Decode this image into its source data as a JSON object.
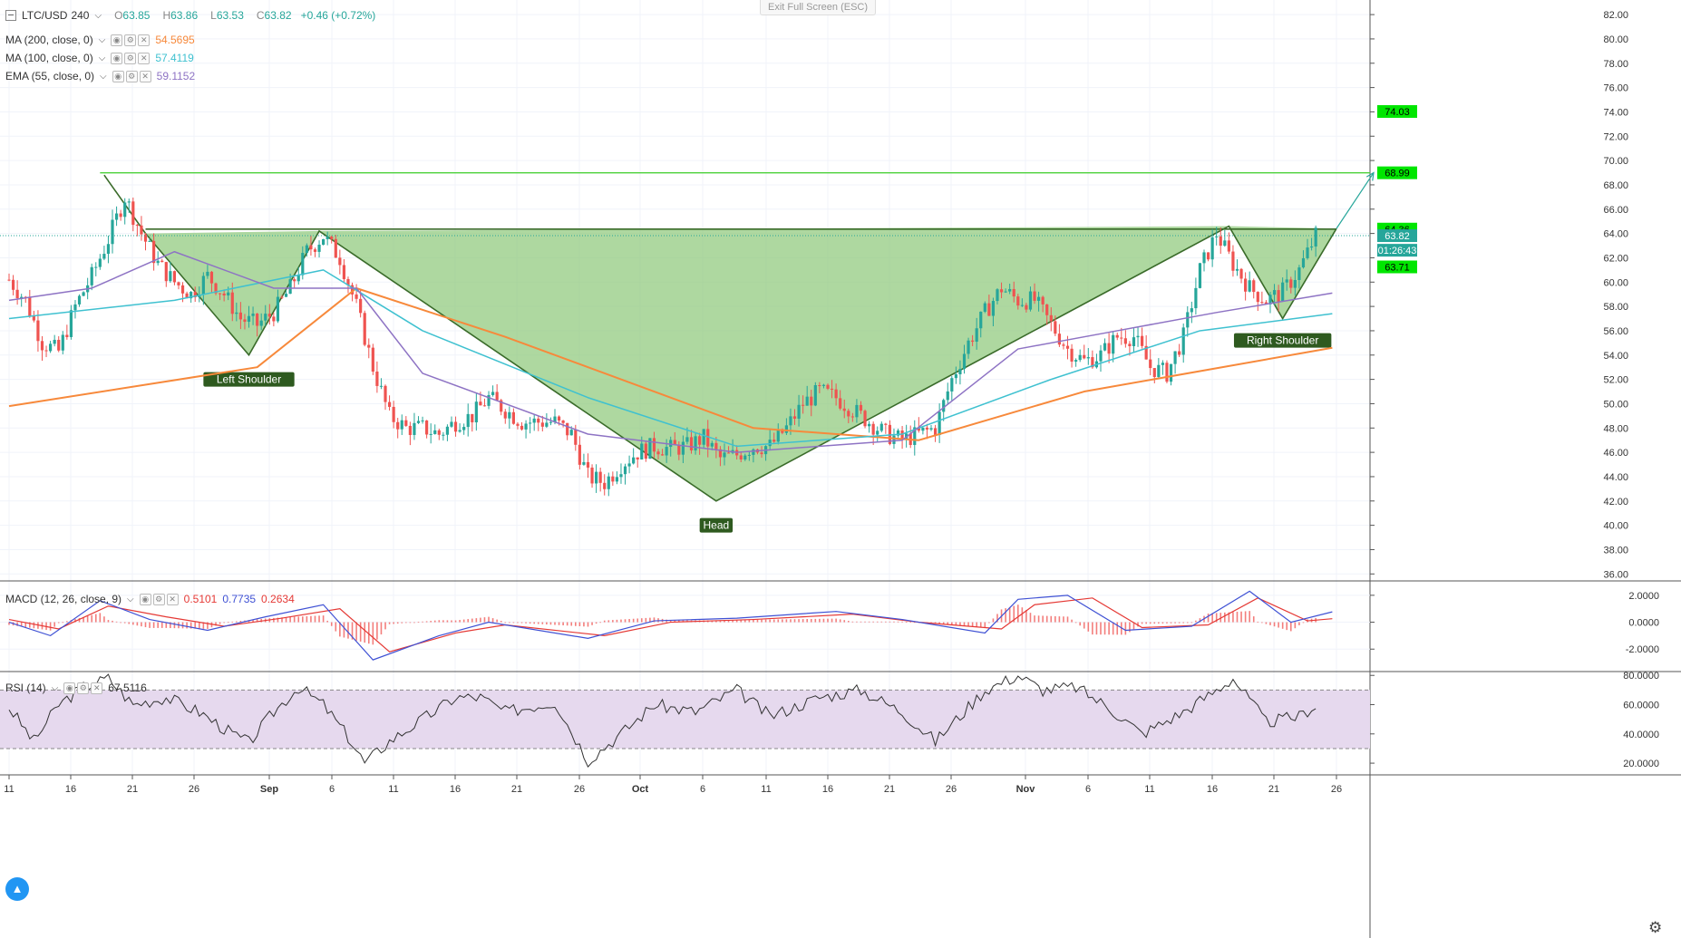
{
  "header": {
    "symbol": "LTC/USD",
    "interval": "240",
    "ohlc": [
      {
        "key": "O",
        "value": "63.85"
      },
      {
        "key": "H",
        "value": "63.86"
      },
      {
        "key": "L",
        "value": "63.53"
      },
      {
        "key": "C",
        "value": "63.82"
      }
    ],
    "change": "+0.46 (+0.72%)",
    "exit_fullscreen": "Exit Full Screen (ESC)"
  },
  "indicators": [
    {
      "name": "MA (200, close, 0)",
      "value": "54.5695",
      "color": "#f7893b"
    },
    {
      "name": "MA (100, close, 0)",
      "value": "57.4119",
      "color": "#3fc1d0"
    },
    {
      "name": "EMA (55, close, 0)",
      "value": "59.1152",
      "color": "#8e73c4"
    }
  ],
  "macd_legend": {
    "name": "MACD (12, 26, close, 9)",
    "values": [
      "0.5101",
      "0.7735",
      "0.2634"
    ],
    "colors": [
      "#e53935",
      "#3f51d4",
      "#e53935"
    ]
  },
  "rsi_legend": {
    "name": "RSI (14)",
    "value": "67.5116",
    "color": "#333333"
  },
  "icons": {
    "collapse": "collapse-icon",
    "logo": "tradingview-logo-icon",
    "settings": "gear-icon"
  },
  "colors": {
    "up": "#26a69a",
    "down": "#ef5350",
    "pattern_fill": "#8bc878",
    "pattern_stroke": "#3a6b2a",
    "target_line": "#4cd13a",
    "rsi_band": "#e6d9ee"
  },
  "chart_data": [
    {
      "type": "candlestick",
      "panel": "price",
      "y_ticks": [
        "82.00",
        "80.00",
        "78.00",
        "76.00",
        "74.00",
        "72.00",
        "70.00",
        "68.00",
        "66.00",
        "64.00",
        "62.00",
        "60.00",
        "58.00",
        "56.00",
        "54.00",
        "52.00",
        "50.00",
        "48.00",
        "46.00",
        "44.00",
        "42.00",
        "40.00",
        "38.00",
        "36.00"
      ],
      "ylim": [
        35.5,
        83.2
      ],
      "x_ticks": [
        "11",
        "16",
        "21",
        "26",
        "Sep",
        "6",
        "11",
        "16",
        "21",
        "26",
        "Oct",
        "6",
        "11",
        "16",
        "21",
        "26",
        "Nov",
        "6",
        "11",
        "16",
        "21",
        "26"
      ],
      "close_path": [
        [
          0,
          60.2
        ],
        [
          4,
          58.5
        ],
        [
          8,
          55.0
        ],
        [
          12,
          54.3
        ],
        [
          16,
          58.0
        ],
        [
          20,
          60.5
        ],
        [
          24,
          63.5
        ],
        [
          28,
          67.0
        ],
        [
          32,
          64.0
        ],
        [
          36,
          61.5
        ],
        [
          40,
          60.0
        ],
        [
          44,
          59.0
        ],
        [
          48,
          60.5
        ],
        [
          52,
          59.0
        ],
        [
          56,
          57.0
        ],
        [
          60,
          56.5
        ],
        [
          64,
          57.5
        ],
        [
          68,
          59.5
        ],
        [
          72,
          62.5
        ],
        [
          76,
          63.8
        ],
        [
          80,
          62.0
        ],
        [
          84,
          58.0
        ],
        [
          88,
          53.0
        ],
        [
          92,
          49.0
        ],
        [
          96,
          48.0
        ],
        [
          100,
          48.0
        ],
        [
          104,
          47.5
        ],
        [
          108,
          48.5
        ],
        [
          112,
          49.0
        ],
        [
          116,
          50.5
        ],
        [
          120,
          49.5
        ],
        [
          124,
          48.5
        ],
        [
          128,
          48.5
        ],
        [
          132,
          48.5
        ],
        [
          136,
          47.5
        ],
        [
          140,
          44.0
        ],
        [
          144,
          43.5
        ],
        [
          148,
          45.0
        ],
        [
          152,
          46.0
        ],
        [
          156,
          46.5
        ],
        [
          160,
          46.3
        ],
        [
          164,
          46.5
        ],
        [
          168,
          47.2
        ],
        [
          172,
          45.5
        ],
        [
          176,
          45.8
        ],
        [
          180,
          46.5
        ],
        [
          184,
          46.5
        ],
        [
          188,
          48.0
        ],
        [
          192,
          50.0
        ],
        [
          196,
          51.0
        ],
        [
          200,
          50.5
        ],
        [
          204,
          49.5
        ],
        [
          208,
          48.5
        ],
        [
          212,
          47.5
        ],
        [
          216,
          47.0
        ],
        [
          220,
          47.5
        ],
        [
          224,
          48.0
        ],
        [
          228,
          52.0
        ],
        [
          232,
          55.0
        ],
        [
          236,
          57.5
        ],
        [
          240,
          59.5
        ],
        [
          244,
          58.5
        ],
        [
          248,
          58.5
        ],
        [
          252,
          56.5
        ],
        [
          256,
          54.5
        ],
        [
          260,
          53.5
        ],
        [
          264,
          54.0
        ],
        [
          268,
          55.5
        ],
        [
          272,
          55.5
        ],
        [
          276,
          53.0
        ],
        [
          280,
          52.5
        ],
        [
          284,
          55.5
        ],
        [
          288,
          61.0
        ],
        [
          292,
          64.0
        ],
        [
          296,
          61.5
        ],
        [
          300,
          59.5
        ],
        [
          304,
          58.5
        ],
        [
          308,
          59.2
        ],
        [
          312,
          61.0
        ],
        [
          316,
          63.82
        ]
      ],
      "series": [
        {
          "name": "MA (200, close, 0)",
          "values": [
            [
              0,
              49.8
            ],
            [
              60,
              53.0
            ],
            [
              84,
              59.5
            ],
            [
              120,
              55.5
            ],
            [
              180,
              48.0
            ],
            [
              220,
              47.0
            ],
            [
              260,
              51.0
            ],
            [
              320,
              54.6
            ]
          ],
          "color": "#f7893b"
        },
        {
          "name": "MA (100, close, 0)",
          "values": [
            [
              0,
              57.0
            ],
            [
              40,
              58.5
            ],
            [
              76,
              61.0
            ],
            [
              100,
              56.0
            ],
            [
              140,
              50.5
            ],
            [
              176,
              46.5
            ],
            [
              216,
              47.5
            ],
            [
              252,
              52.0
            ],
            [
              288,
              56.0
            ],
            [
              320,
              57.4
            ]
          ],
          "color": "#3fc1d0"
        },
        {
          "name": "EMA (55, close, 0)",
          "values": [
            [
              0,
              58.5
            ],
            [
              20,
              59.5
            ],
            [
              40,
              62.5
            ],
            [
              64,
              59.5
            ],
            [
              84,
              59.5
            ],
            [
              100,
              52.5
            ],
            [
              140,
              47.5
            ],
            [
              176,
              46.0
            ],
            [
              216,
              47.0
            ],
            [
              244,
              54.5
            ],
            [
              268,
              56.0
            ],
            [
              292,
              57.5
            ],
            [
              320,
              59.1
            ]
          ],
          "color": "#8e73c4"
        }
      ],
      "price_labels": [
        {
          "value": "74.03",
          "y": 74.03,
          "color": "#00e600",
          "text_color": "#000000"
        },
        {
          "value": "68.99",
          "y": 68.99,
          "color": "#00e600",
          "text_color": "#000000"
        },
        {
          "value": "64.36",
          "y": 64.36,
          "color": "#00e600",
          "text_color": "#000000"
        },
        {
          "value": "63.82",
          "y": 63.82,
          "color": "#26a69a",
          "text_color": "#ffffff"
        },
        {
          "value": "01:26:43",
          "y": 62.62,
          "color": "#26a69a",
          "text_color": "#ffffff"
        },
        {
          "value": "63.71",
          "y": 61.25,
          "color": "#00e600",
          "text_color": "#000000"
        }
      ],
      "target_line": 68.99,
      "neckline": 64.36,
      "pattern": {
        "points": [
          [
            23,
            68.8
          ],
          [
            33,
            64.0
          ],
          [
            58,
            54.0
          ],
          [
            75,
            64.2
          ],
          [
            171,
            42.0
          ],
          [
            295,
            64.6
          ],
          [
            308,
            57.0
          ],
          [
            321,
            64.4
          ]
        ],
        "labels": [
          {
            "text": "Left Shoulder",
            "x": 58,
            "y": 52.0
          },
          {
            "text": "Head",
            "x": 171,
            "y": 40.0
          },
          {
            "text": "Right Shoulder",
            "x": 308,
            "y": 55.2
          }
        ],
        "arrow": [
          [
            321,
            64.4
          ],
          [
            330,
            69.0
          ]
        ]
      }
    },
    {
      "type": "macd",
      "panel": "macd",
      "y_ticks": [
        "2.0000",
        "0.0000",
        "-2.0000"
      ],
      "ylim": [
        -3.6,
        3.0
      ],
      "macd_line": [
        [
          0,
          0.0
        ],
        [
          10,
          -1.0
        ],
        [
          22,
          1.6
        ],
        [
          34,
          0.2
        ],
        [
          48,
          -0.6
        ],
        [
          62,
          0.4
        ],
        [
          76,
          1.3
        ],
        [
          88,
          -2.8
        ],
        [
          104,
          -1.0
        ],
        [
          116,
          0.0
        ],
        [
          140,
          -1.2
        ],
        [
          156,
          0.1
        ],
        [
          176,
          0.3
        ],
        [
          200,
          0.8
        ],
        [
          216,
          0.2
        ],
        [
          236,
          -0.8
        ],
        [
          244,
          1.7
        ],
        [
          256,
          2.0
        ],
        [
          270,
          -0.6
        ],
        [
          286,
          -0.3
        ],
        [
          300,
          2.3
        ],
        [
          310,
          0.0
        ],
        [
          320,
          0.77
        ]
      ],
      "signal_line": [
        [
          0,
          0.2
        ],
        [
          12,
          -0.5
        ],
        [
          24,
          1.2
        ],
        [
          38,
          0.4
        ],
        [
          52,
          -0.3
        ],
        [
          66,
          0.3
        ],
        [
          80,
          1.0
        ],
        [
          92,
          -2.2
        ],
        [
          108,
          -0.8
        ],
        [
          120,
          -0.2
        ],
        [
          144,
          -1.0
        ],
        [
          160,
          0.0
        ],
        [
          180,
          0.2
        ],
        [
          204,
          0.6
        ],
        [
          220,
          0.0
        ],
        [
          240,
          -0.5
        ],
        [
          248,
          1.3
        ],
        [
          262,
          1.8
        ],
        [
          274,
          -0.4
        ],
        [
          290,
          -0.2
        ],
        [
          302,
          1.8
        ],
        [
          314,
          0.1
        ],
        [
          320,
          0.26
        ]
      ]
    },
    {
      "type": "line",
      "panel": "rsi",
      "name": "RSI (14)",
      "y_ticks": [
        "80.0000",
        "60.0000",
        "40.0000",
        "20.0000"
      ],
      "ylim": [
        12,
        82
      ],
      "band": [
        30,
        70
      ],
      "values": [
        [
          0,
          58
        ],
        [
          6,
          35
        ],
        [
          12,
          60
        ],
        [
          18,
          72
        ],
        [
          24,
          78
        ],
        [
          30,
          60
        ],
        [
          38,
          65
        ],
        [
          46,
          55
        ],
        [
          54,
          40
        ],
        [
          58,
          34
        ],
        [
          64,
          55
        ],
        [
          70,
          72
        ],
        [
          76,
          60
        ],
        [
          82,
          38
        ],
        [
          86,
          20
        ],
        [
          92,
          35
        ],
        [
          100,
          50
        ],
        [
          108,
          65
        ],
        [
          114,
          65
        ],
        [
          120,
          55
        ],
        [
          132,
          62
        ],
        [
          140,
          22
        ],
        [
          148,
          40
        ],
        [
          156,
          60
        ],
        [
          166,
          55
        ],
        [
          176,
          70
        ],
        [
          184,
          52
        ],
        [
          196,
          65
        ],
        [
          206,
          70
        ],
        [
          216,
          55
        ],
        [
          224,
          35
        ],
        [
          236,
          70
        ],
        [
          244,
          80
        ],
        [
          250,
          70
        ],
        [
          258,
          72
        ],
        [
          266,
          58
        ],
        [
          274,
          40
        ],
        [
          284,
          55
        ],
        [
          292,
          70
        ],
        [
          296,
          78
        ],
        [
          304,
          48
        ],
        [
          312,
          52
        ],
        [
          320,
          67.5
        ]
      ]
    }
  ]
}
